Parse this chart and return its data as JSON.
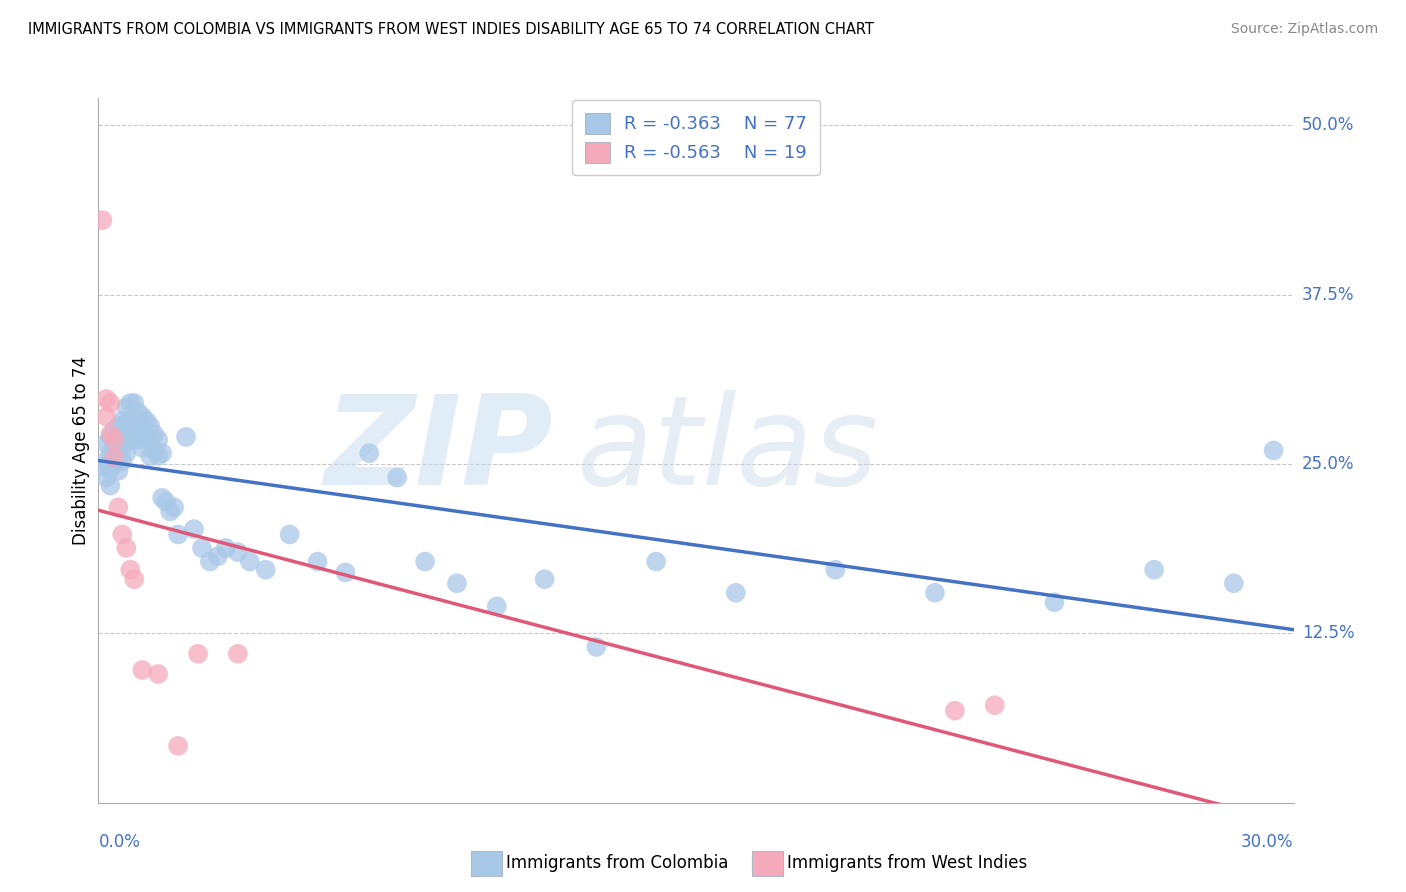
{
  "title": "IMMIGRANTS FROM COLOMBIA VS IMMIGRANTS FROM WEST INDIES DISABILITY AGE 65 TO 74 CORRELATION CHART",
  "source": "Source: ZipAtlas.com",
  "ylabel": "Disability Age 65 to 74",
  "yticks": [
    0.125,
    0.25,
    0.375,
    0.5
  ],
  "ytick_labels": [
    "12.5%",
    "25.0%",
    "37.5%",
    "50.0%"
  ],
  "xmin": 0.0,
  "xmax": 0.3,
  "ymin": 0.0,
  "ymax": 0.52,
  "colombia_R": -0.363,
  "colombia_N": 77,
  "westindies_R": -0.563,
  "westindies_N": 19,
  "colombia_color": "#a8c8e8",
  "westindies_color": "#f5aabb",
  "colombia_line_color": "#4472c4",
  "westindies_line_color": "#e05878",
  "colombia_scatter_x": [
    0.001,
    0.002,
    0.002,
    0.002,
    0.003,
    0.003,
    0.003,
    0.003,
    0.004,
    0.004,
    0.004,
    0.005,
    0.005,
    0.005,
    0.005,
    0.006,
    0.006,
    0.006,
    0.006,
    0.007,
    0.007,
    0.007,
    0.007,
    0.008,
    0.008,
    0.008,
    0.009,
    0.009,
    0.009,
    0.01,
    0.01,
    0.01,
    0.011,
    0.011,
    0.011,
    0.012,
    0.012,
    0.013,
    0.013,
    0.013,
    0.014,
    0.014,
    0.015,
    0.015,
    0.016,
    0.016,
    0.017,
    0.018,
    0.019,
    0.02,
    0.022,
    0.024,
    0.026,
    0.028,
    0.03,
    0.032,
    0.035,
    0.038,
    0.042,
    0.048,
    0.055,
    0.062,
    0.068,
    0.075,
    0.082,
    0.09,
    0.1,
    0.112,
    0.125,
    0.14,
    0.16,
    0.185,
    0.21,
    0.24,
    0.265,
    0.285,
    0.295
  ],
  "colombia_scatter_y": [
    0.248,
    0.265,
    0.252,
    0.24,
    0.27,
    0.258,
    0.246,
    0.234,
    0.275,
    0.262,
    0.25,
    0.278,
    0.268,
    0.258,
    0.245,
    0.282,
    0.272,
    0.262,
    0.252,
    0.292,
    0.28,
    0.27,
    0.258,
    0.295,
    0.283,
    0.27,
    0.295,
    0.282,
    0.268,
    0.288,
    0.278,
    0.268,
    0.285,
    0.275,
    0.262,
    0.282,
    0.27,
    0.278,
    0.268,
    0.256,
    0.272,
    0.26,
    0.268,
    0.256,
    0.258,
    0.225,
    0.222,
    0.215,
    0.218,
    0.198,
    0.27,
    0.202,
    0.188,
    0.178,
    0.182,
    0.188,
    0.185,
    0.178,
    0.172,
    0.198,
    0.178,
    0.17,
    0.258,
    0.24,
    0.178,
    0.162,
    0.145,
    0.165,
    0.115,
    0.178,
    0.155,
    0.172,
    0.155,
    0.148,
    0.172,
    0.162,
    0.26
  ],
  "westindies_scatter_x": [
    0.001,
    0.002,
    0.002,
    0.003,
    0.003,
    0.004,
    0.004,
    0.005,
    0.006,
    0.007,
    0.008,
    0.009,
    0.011,
    0.015,
    0.02,
    0.025,
    0.035,
    0.215,
    0.225
  ],
  "westindies_scatter_y": [
    0.43,
    0.298,
    0.285,
    0.295,
    0.272,
    0.268,
    0.255,
    0.218,
    0.198,
    0.188,
    0.172,
    0.165,
    0.098,
    0.095,
    0.042,
    0.11,
    0.11,
    0.068,
    0.072
  ],
  "legend_colombia": "Immigrants from Colombia",
  "legend_westindies": "Immigrants from West Indies"
}
